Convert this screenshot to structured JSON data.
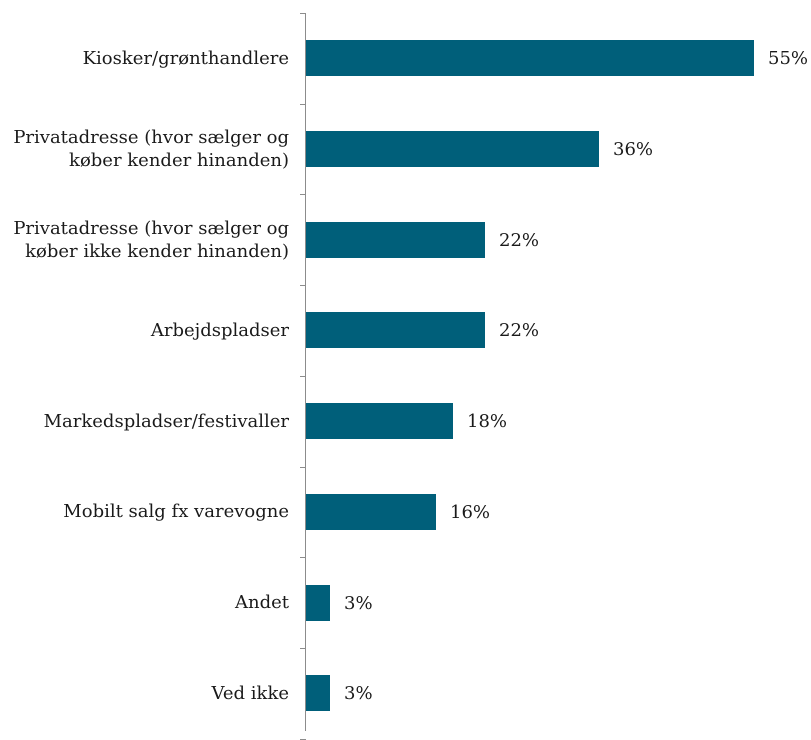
{
  "chart_data": {
    "type": "bar",
    "orientation": "horizontal",
    "categories": [
      "Kiosker/grønthandlere",
      "Privatadresse (hvor sælger og\nkøber  kender hinanden)",
      "Privatadresse (hvor sælger og\nkøber ikke kender hinanden)",
      "Arbejdspladser",
      "Markedspladser/festivaller",
      "Mobilt salg fx varevogne",
      "Andet",
      "Ved ikke"
    ],
    "values": [
      55,
      36,
      22,
      22,
      18,
      16,
      3,
      3
    ],
    "value_labels": [
      "55%",
      "36%",
      "22%",
      "22%",
      "18%",
      "16%",
      "3%",
      "3%"
    ],
    "unit": "%",
    "xlim": [
      0,
      55
    ],
    "grid": false,
    "legend": "none",
    "bar_color": "#005f7a",
    "axis_color": "#8c8c8c"
  }
}
